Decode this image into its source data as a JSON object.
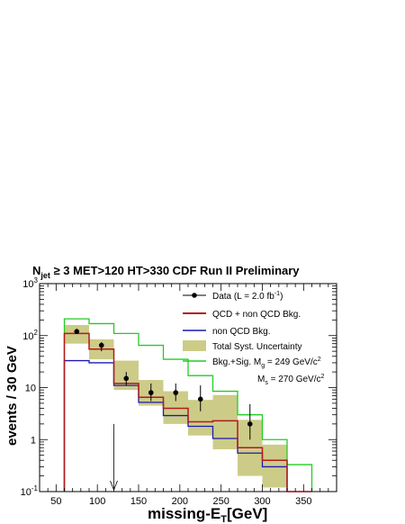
{
  "chart_data": {
    "type": "line",
    "title": "N_jet ≥ 3  MET>120 HT>330 CDF Run II Preliminary",
    "title_parts": {
      "n": "N",
      "jet": "jet",
      "rest": " ≥ 3  MET>120 HT>330 CDF Run II Preliminary"
    },
    "xlabel": {
      "main": "missing-E",
      "sub": "T",
      "tail": "[GeV]"
    },
    "ylabel": "events / 30 GeV",
    "xlim": [
      30,
      390
    ],
    "ylim": [
      0.1,
      1000
    ],
    "y_scale": "log",
    "x_ticks": [
      "50",
      "100",
      "150",
      "200",
      "250",
      "300",
      "350"
    ],
    "x_tick_values": [
      50,
      100,
      150,
      200,
      250,
      300,
      350
    ],
    "y_ticks": [
      {
        "base": "10",
        "exp": "-1",
        "value": 0.1
      },
      {
        "base": "1",
        "exp": "",
        "value": 1
      },
      {
        "base": "10",
        "exp": "",
        "value": 10
      },
      {
        "base": "10",
        "exp": "2",
        "value": 100
      },
      {
        "base": "10",
        "exp": "3",
        "value": 1000
      }
    ],
    "bin_edges": [
      60,
      90,
      120,
      150,
      180,
      210,
      240,
      270,
      300,
      330,
      360
    ],
    "series": [
      {
        "name": "QCD + non QCD Bkg.",
        "color": "#b31a1a",
        "values": [
          110,
          55,
          12,
          6.5,
          4,
          2.2,
          2.3,
          0.7,
          0.4,
          0.1
        ]
      },
      {
        "name": "non QCD Bkg.",
        "color": "#1a1ab3",
        "values": [
          33,
          30,
          11,
          5.2,
          2.9,
          1.8,
          1.05,
          0.55,
          0.3,
          0.1
        ]
      },
      {
        "name": "Bkg.+Sig. M_g = 249 GeV/c²",
        "color": "#22cc22",
        "values": [
          210,
          170,
          110,
          65,
          35,
          17,
          8.5,
          3,
          1,
          0.33
        ]
      }
    ],
    "uncertainty_band": {
      "name": "Total Syst. Uncertainty",
      "color": "#cccc88",
      "low": [
        70,
        35,
        9,
        4.5,
        2,
        1.2,
        0.65,
        0.2,
        0.12,
        0.1
      ],
      "high": [
        160,
        85,
        33,
        14,
        8.5,
        5.8,
        7.2,
        2.4,
        0.8,
        0.1
      ]
    },
    "data_points": {
      "name": "Data",
      "x": [
        75,
        105,
        135,
        165,
        195,
        225,
        285
      ],
      "y": [
        120,
        65,
        15,
        8,
        8,
        6,
        2
      ],
      "y_err_low": [
        110,
        50,
        11,
        5.5,
        5.5,
        3.5,
        1
      ],
      "y_err_high": [
        135,
        75,
        20,
        12,
        12,
        11,
        4.8
      ]
    },
    "arrow": {
      "x": 120,
      "y_from": 2,
      "y_to": 0.1
    },
    "legend": {
      "position": "top-right",
      "data_label": "Data (L = 2.0 fb",
      "data_exp": "-1",
      "data_tail": ")",
      "qcd_label": "QCD + non QCD Bkg.",
      "nonqcd_label": "non QCD Bkg.",
      "syst_label": "Total Syst. Uncertainty",
      "sig_label_a": "Bkg.+Sig. M",
      "sig_label_sub": "g",
      "sig_label_b": " = 249 GeV/c",
      "sig_label_sup": "2",
      "ms_label_a": "M",
      "ms_label_sub": "s",
      "ms_label_b": " = 270 GeV/c",
      "ms_label_sup": "2"
    }
  }
}
